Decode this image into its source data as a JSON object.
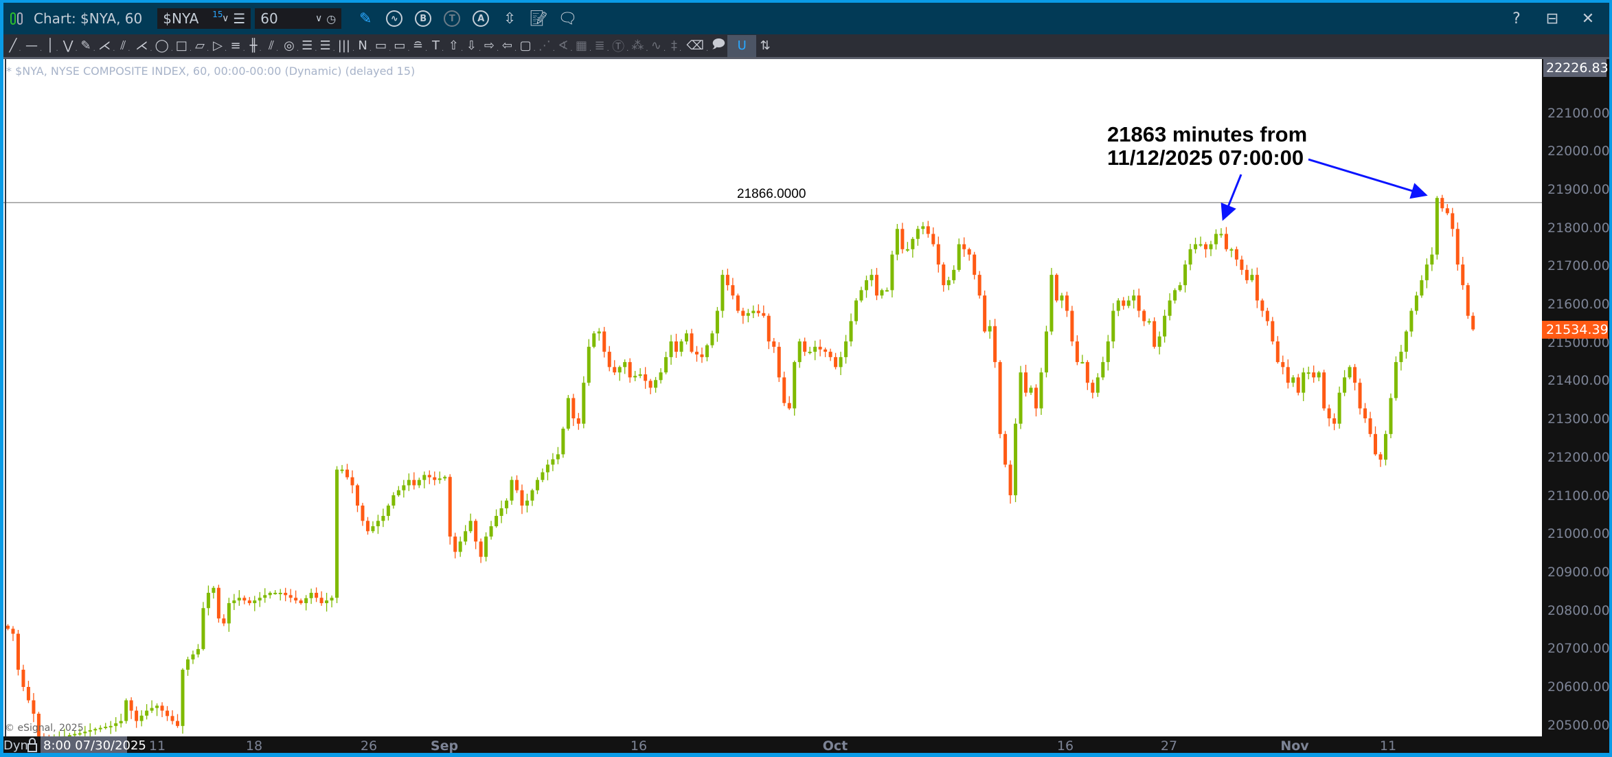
{
  "header": {
    "title": "Chart: $NYA, 60",
    "symbol": "$NYA",
    "symbol_badge": "15",
    "interval": "60",
    "icons": [
      "pencil-icon",
      "chart-refresh-icon",
      "b-circle-icon",
      "t-circle-icon",
      "a-circle-icon",
      "swap-arrows-icon",
      "edit-note-icon",
      "comment-icon"
    ],
    "right_icons": [
      "help-icon",
      "dock-icon",
      "close-icon"
    ]
  },
  "toolbar": {
    "tools": [
      {
        "name": "line-tool",
        "glyph": "╱"
      },
      {
        "name": "horizontal-line-tool",
        "glyph": "—"
      },
      {
        "name": "vertical-line-tool",
        "glyph": "│"
      },
      {
        "name": "polyline-tool",
        "glyph": "⋁"
      },
      {
        "name": "pencil-tool",
        "glyph": "✎"
      },
      {
        "name": "fan-tool",
        "glyph": "⋌"
      },
      {
        "name": "pitchfork-tool",
        "glyph": "⫽"
      },
      {
        "name": "gann-fan-tool",
        "glyph": "⋌"
      },
      {
        "name": "ellipse-tool",
        "glyph": "◯"
      },
      {
        "name": "rectangle-tool",
        "glyph": "□"
      },
      {
        "name": "rotated-rectangle-tool",
        "glyph": "▱"
      },
      {
        "name": "triangle-tool",
        "glyph": "▷"
      },
      {
        "name": "parallel-channel-tool",
        "glyph": "≡"
      },
      {
        "name": "cycle-lines-tool",
        "glyph": "╫"
      },
      {
        "name": "double-line-tool",
        "glyph": "⫽"
      },
      {
        "name": "target-tool",
        "glyph": "◎"
      },
      {
        "name": "fib-retracement-tool",
        "glyph": "☰"
      },
      {
        "name": "fib-extension-tool",
        "glyph": "☰"
      },
      {
        "name": "time-zones-tool",
        "glyph": "|||"
      },
      {
        "name": "zigzag-tool",
        "glyph": "N"
      },
      {
        "name": "range-box-tool",
        "glyph": "▭"
      },
      {
        "name": "price-range-tool",
        "glyph": "▭"
      },
      {
        "name": "date-range-tool",
        "glyph": "≘"
      },
      {
        "name": "text-tool",
        "glyph": "T"
      },
      {
        "name": "arrow-up-tool",
        "glyph": "⇧"
      },
      {
        "name": "arrow-down-tool",
        "glyph": "⇩"
      },
      {
        "name": "arrow-right-tool",
        "glyph": "⇨"
      },
      {
        "name": "arrow-left-tool",
        "glyph": "⇦"
      },
      {
        "name": "callout-tool",
        "glyph": "▢"
      },
      {
        "name": "regression-tool",
        "glyph": "⋰",
        "dim": true
      },
      {
        "name": "angle-tool",
        "glyph": "∢",
        "dim": true
      },
      {
        "name": "grid-tool",
        "glyph": "▦",
        "dim": true
      },
      {
        "name": "hob-tool",
        "glyph": "≣",
        "dim": true
      },
      {
        "name": "td-tool",
        "glyph": "Ⓣ",
        "dim": true
      },
      {
        "name": "pti-tool",
        "glyph": "⁂",
        "dim": true
      },
      {
        "name": "wave-tool",
        "glyph": "∿",
        "dim": true
      },
      {
        "name": "stats-tool",
        "glyph": "‡",
        "dim": true
      },
      {
        "name": "eraser-tool",
        "glyph": "⌫"
      },
      {
        "name": "note-tool",
        "glyph": "🗩"
      },
      {
        "name": "magnet-tool",
        "glyph": "U",
        "active": true
      },
      {
        "name": "settings-tool",
        "glyph": "⇅"
      }
    ]
  },
  "chart": {
    "title_line": "* $NYA, NYSE COMPOSITE INDEX, 60, 00:00-00:00 (Dynamic) (delayed 15)",
    "copyright": "© eSignal, 2025",
    "dyn_label": "Dyn",
    "cursor_time": "8:00 07/30/2025",
    "top_price": "22226.8310",
    "current_price": "21534.3950",
    "horizontal_line_label": "21866.0000",
    "annotation_line1": "21863 minutes from",
    "annotation_line2": "11/12/2025 07:00:00",
    "colors": {
      "up": "#7fba00",
      "down": "#ff5a14",
      "annotation": "#0a14ff",
      "hline": "#9a9a9a",
      "current": "#ff5a14"
    }
  },
  "chart_data": {
    "type": "candlestick",
    "interval": "60",
    "symbol": "$NYA",
    "ylim": [
      20480,
      22226.831
    ],
    "y_ticks": [
      22100,
      22000,
      21900,
      21800,
      21700,
      21600,
      21500,
      21400,
      21300,
      21200,
      21100,
      21000,
      20900,
      20800,
      20700,
      20600,
      20500
    ],
    "y_tick_labels": [
      "22100.0000",
      "22000.0000",
      "21900.0000",
      "21800.0000",
      "21700.0000",
      "21600.0000",
      "21500.0000",
      "21400.0000",
      "21300.0000",
      "21200.0000",
      "21100.0000",
      "21000.0000",
      "20900.0000",
      "20800.0000",
      "20700.0000",
      "20600.0000",
      "20500.0000"
    ],
    "x_tick_labels": [
      "11",
      "18",
      "26",
      "Sep",
      "16",
      "Oct",
      "16",
      "27",
      "Nov",
      "11"
    ],
    "horizontal_line": 21866,
    "last": 21534.395,
    "closes": [
      20752,
      20739,
      20645,
      20600,
      20565,
      20530,
      20471,
      20464,
      20457,
      20462,
      20467,
      20471,
      20474,
      20477,
      20479,
      20483,
      20487,
      20490,
      20493,
      20496,
      20498,
      20505,
      20511,
      20565,
      20538,
      20511,
      20525,
      20538,
      20545,
      20551,
      20538,
      20524,
      20511,
      20498,
      20645,
      20672,
      20685,
      20699,
      20806,
      20846,
      20859,
      20779,
      20766,
      20819,
      20826,
      20833,
      20826,
      20819,
      20826,
      20833,
      20840,
      20846,
      20846,
      20846,
      20840,
      20833,
      20826,
      20819,
      20832,
      20846,
      20833,
      20819,
      20826,
      20833,
      21168,
      21168,
      21148,
      21127,
      21074,
      21034,
      21007,
      21020,
      21034,
      21047,
      21074,
      21101,
      21114,
      21127,
      21141,
      21127,
      21141,
      21154,
      21148,
      21141,
      21145,
      21149,
      20993,
      20953,
      20980,
      21007,
      21034,
      20980,
      20940,
      20993,
      21020,
      21047,
      21067,
      21087,
      21141,
      21114,
      21074,
      21087,
      21114,
      21141,
      21161,
      21181,
      21195,
      21208,
      21275,
      21355,
      21302,
      21288,
      21395,
      21489,
      21524,
      21529,
      21476,
      21436,
      21422,
      21436,
      21449,
      21409,
      21413,
      21417,
      21400,
      21382,
      21402,
      21422,
      21462,
      21503,
      21476,
      21503,
      21524,
      21476,
      21469,
      21462,
      21493,
      21524,
      21583,
      21677,
      21650,
      21623,
      21583,
      21570,
      21577,
      21583,
      21577,
      21570,
      21503,
      21489,
      21409,
      21342,
      21328,
      21449,
      21503,
      21476,
      21476,
      21489,
      21482,
      21476,
      21462,
      21436,
      21462,
      21503,
      21556,
      21610,
      21637,
      21663,
      21677,
      21623,
      21637,
      21637,
      21730,
      21797,
      21744,
      21744,
      21771,
      21797,
      21804,
      21784,
      21757,
      21704,
      21650,
      21663,
      21690,
      21757,
      21744,
      21730,
      21677,
      21623,
      21529,
      21543,
      21449,
      21261,
      21181,
      21101,
      21288,
      21422,
      21369,
      21382,
      21328,
      21422,
      21529,
      21677,
      21610,
      21623,
      21583,
      21503,
      21449,
      21449,
      21395,
      21369,
      21409,
      21449,
      21503,
      21583,
      21610,
      21596,
      21610,
      21623,
      21583,
      21556,
      21556,
      21489,
      21516,
      21570,
      21610,
      21637,
      21650,
      21704,
      21744,
      21757,
      21757,
      21744,
      21757,
      21784,
      21784,
      21744,
      21744,
      21717,
      21690,
      21663,
      21677,
      21610,
      21583,
      21556,
      21503,
      21449,
      21436,
      21395,
      21409,
      21369,
      21422,
      21422,
      21409,
      21422,
      21328,
      21302,
      21288,
      21369,
      21409,
      21436,
      21395,
      21328,
      21302,
      21261,
      21208,
      21194,
      21261,
      21355,
      21449,
      21476,
      21529,
      21583,
      21623,
      21663,
      21704,
      21730,
      21878,
      21851,
      21838,
      21797,
      21704,
      21650,
      21570,
      21534.395
    ]
  }
}
